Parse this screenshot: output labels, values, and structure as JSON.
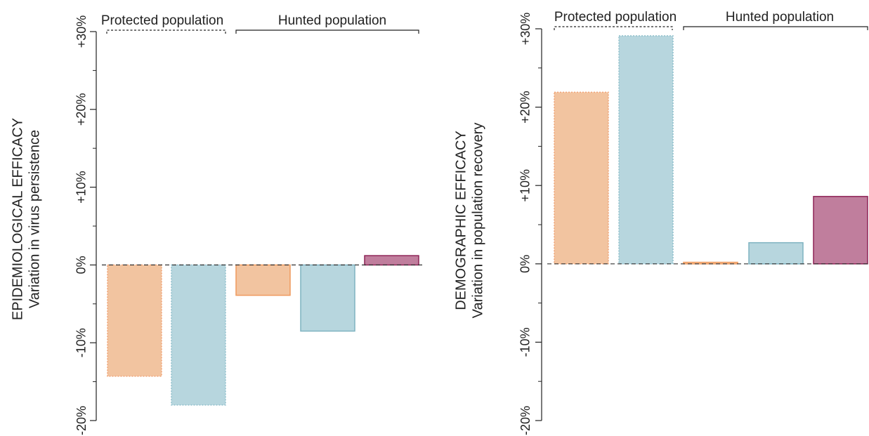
{
  "chart_data": [
    {
      "type": "bar",
      "ylabel_lines": [
        "EPIDEMIOLOGICAL EFFICACY",
        "Variation in virus persistence"
      ],
      "ylim": [
        -20,
        30
      ],
      "yticks": [
        30,
        20,
        10,
        0,
        -10,
        -20
      ],
      "ytick_labels": [
        "+30%",
        "+20%",
        "+10%",
        "0%",
        "-10%",
        "-20%"
      ],
      "groups": [
        {
          "label": "Protected population",
          "bracket": "dashed"
        },
        {
          "label": "Hunted population",
          "bracket": "solid"
        }
      ],
      "values": [
        -14.3,
        -18.0,
        -3.9,
        -8.5,
        1.2
      ],
      "bar_styles": [
        {
          "fill": "#f2c4a0",
          "stroke": "#f0a477",
          "dash": true
        },
        {
          "fill": "#b7d6de",
          "stroke": "#8fbfcc",
          "dash": true
        },
        {
          "fill": "#f2c4a0",
          "stroke": "#ef9a5e",
          "dash": false
        },
        {
          "fill": "#b7d6de",
          "stroke": "#7fb3c1",
          "dash": false
        },
        {
          "fill": "#c07e9d",
          "stroke": "#8e2357",
          "dash": false
        }
      ],
      "zero_line": "dashed",
      "grid": false
    },
    {
      "type": "bar",
      "ylabel_lines": [
        "DEMOGRAPHIC EFFICACY",
        "Variation in population recovery"
      ],
      "ylim": [
        -20,
        30
      ],
      "yticks": [
        30,
        20,
        10,
        0,
        -10,
        -20
      ],
      "ytick_labels": [
        "+30%",
        "+20%",
        "+10%",
        "0%",
        "-10%",
        "-20%"
      ],
      "groups": [
        {
          "label": "Protected population",
          "bracket": "dashed"
        },
        {
          "label": "Hunted population",
          "bracket": "solid"
        }
      ],
      "values": [
        21.9,
        29.1,
        0.2,
        2.7,
        8.6
      ],
      "bar_styles": [
        {
          "fill": "#f2c4a0",
          "stroke": "#f0a477",
          "dash": true
        },
        {
          "fill": "#b7d6de",
          "stroke": "#8fbfcc",
          "dash": true
        },
        {
          "fill": "#f2c4a0",
          "stroke": "#ef9a5e",
          "dash": false
        },
        {
          "fill": "#b7d6de",
          "stroke": "#7fb3c1",
          "dash": false
        },
        {
          "fill": "#c07e9d",
          "stroke": "#8e2357",
          "dash": false
        }
      ],
      "zero_line": "dashed",
      "grid": false
    }
  ]
}
